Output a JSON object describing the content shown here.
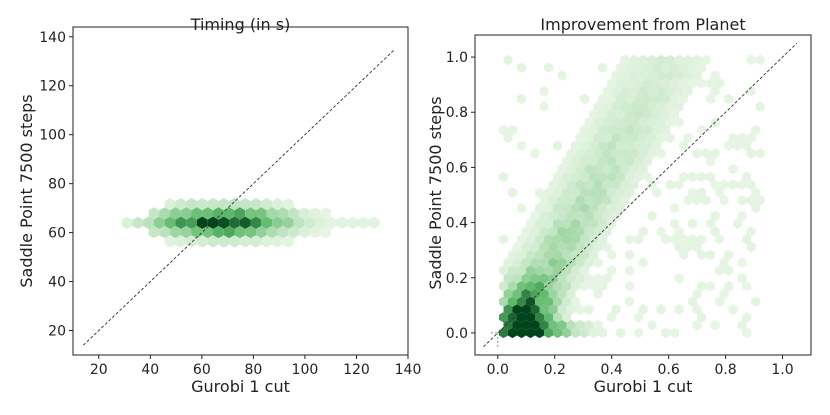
{
  "colors": {
    "hexbin_light": "#eef8ea",
    "hexbin_mid": "#5db96a",
    "hexbin_dark": "#00441b",
    "diagonal": "#333333",
    "axes": "#222222"
  },
  "chart_data": [
    {
      "type": "hexbin",
      "title": "Timing (in s)",
      "xlabel": "Gurobi 1 cut",
      "ylabel": "Saddle Point 7500 steps",
      "xlim": [
        10,
        140
      ],
      "ylim": [
        10,
        144
      ],
      "xticks": [
        20,
        40,
        60,
        80,
        100,
        120,
        140
      ],
      "yticks": [
        20,
        40,
        60,
        80,
        100,
        120,
        140
      ],
      "reference_line": {
        "style": "dashed",
        "x": [
          14,
          135
        ],
        "y": [
          14,
          135
        ]
      },
      "density": {
        "y_center": 64,
        "y_spread": 2.0,
        "x_range": [
          31,
          130
        ],
        "x_peak": 68,
        "x_spread": 17,
        "peak_count": 1.0
      }
    },
    {
      "type": "hexbin",
      "title": "Improvement from Planet",
      "xlabel": "Gurobi 1 cut",
      "ylabel": "Saddle Point 7500 steps",
      "xlim": [
        -0.08,
        1.1
      ],
      "ylim": [
        -0.08,
        1.08
      ],
      "xticks": [
        0.0,
        0.2,
        0.4,
        0.6,
        0.8,
        1.0
      ],
      "yticks": [
        0.0,
        0.2,
        0.4,
        0.6,
        0.8,
        1.0
      ],
      "tick_format": "0.1",
      "reference_line": {
        "style": "dashed",
        "x": [
          -0.05,
          1.05
        ],
        "y": [
          -0.05,
          1.05
        ]
      },
      "crosshair": {
        "x": 0.0,
        "y": 0.0
      },
      "density": {
        "ridge_slope": 1.85,
        "ridge_intercept": -0.1,
        "peak": [
          0.1,
          0.02
        ],
        "x_range": [
          0.02,
          0.93
        ],
        "y_range": [
          0.0,
          1.0
        ],
        "peak_count": 1.0
      }
    }
  ]
}
